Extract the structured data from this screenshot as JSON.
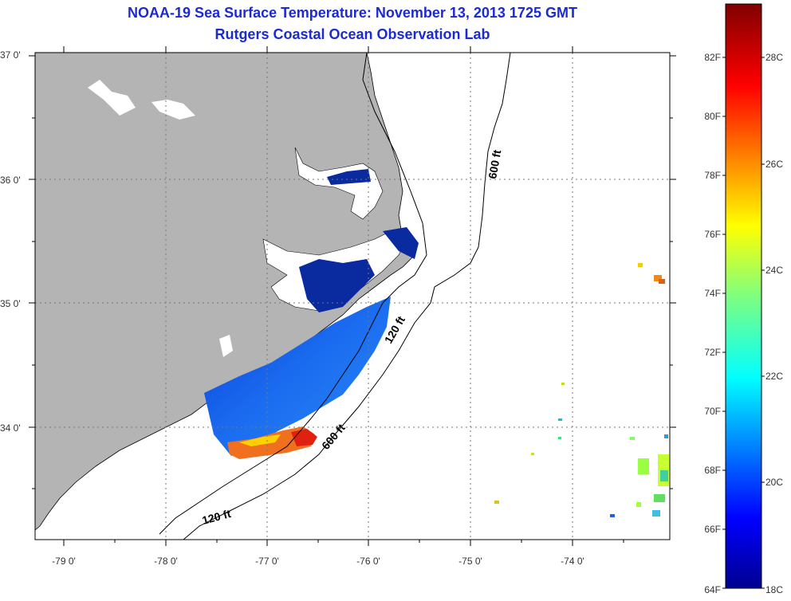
{
  "title": {
    "line1": "NOAA-19 Sea Surface Temperature:  November 13, 2013 1725 GMT",
    "line2": "Rutgers Coastal Ocean Observation Lab"
  },
  "axes": {
    "lat_labels": [
      "37 0'",
      "36 0'",
      "35 0'",
      "34 0'"
    ],
    "lon_labels": [
      "-79 0'",
      "-78 0'",
      "-77 0'",
      "-76 0'",
      "-75 0'",
      "-74 0'"
    ]
  },
  "contours": {
    "shelf_label_a": "120 ft",
    "shelf_label_b": "120 ft",
    "slope_label_a": "600 ft",
    "slope_label_b": "600 ft"
  },
  "colorbar": {
    "fahrenheit": [
      "82F",
      "80F",
      "78F",
      "76F",
      "74F",
      "72F",
      "70F",
      "68F",
      "66F",
      "64F"
    ],
    "celsius": [
      "28C",
      "26C",
      "24C",
      "22C",
      "20C",
      "18C"
    ]
  },
  "colors": {
    "land": "#b4b4b4",
    "title": "#1c2bd0",
    "scale_min": "#00008f",
    "scale_max": "#8b0000"
  }
}
